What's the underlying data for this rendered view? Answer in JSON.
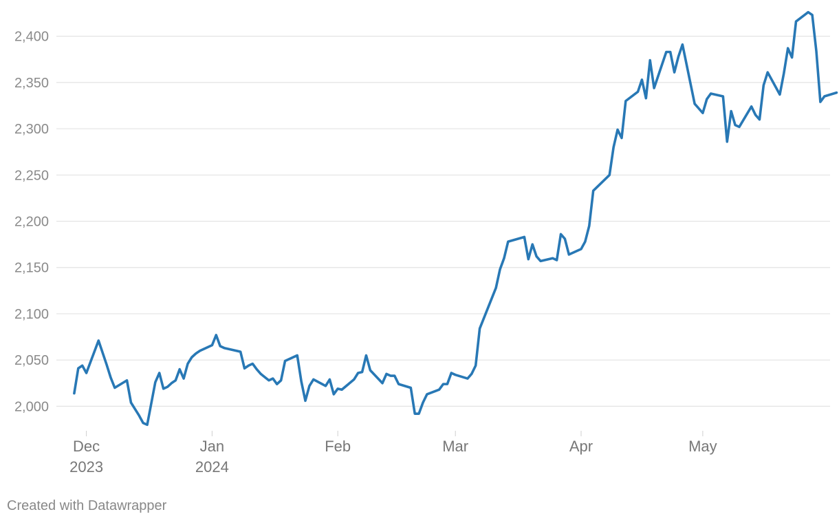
{
  "footer": {
    "credit": "Created with Datawrapper"
  },
  "colors": {
    "line": "#2878b5",
    "grid": "#e3e3e3",
    "tick_text": "#8a8a8a"
  },
  "chart_data": {
    "type": "line",
    "title": "",
    "xlabel": "",
    "ylabel": "",
    "ylim": [
      1975,
      2428
    ],
    "xlim": [
      "2023-11-27",
      "2024-05-29"
    ],
    "y_ticks": [
      {
        "value": 2000,
        "label": "2,000"
      },
      {
        "value": 2050,
        "label": "2,050"
      },
      {
        "value": 2100,
        "label": "2,100"
      },
      {
        "value": 2150,
        "label": "2,150"
      },
      {
        "value": 2200,
        "label": "2,200"
      },
      {
        "value": 2250,
        "label": "2,250"
      },
      {
        "value": 2300,
        "label": "2,300"
      },
      {
        "value": 2350,
        "label": "2,350"
      },
      {
        "value": 2400,
        "label": "2,400"
      }
    ],
    "x_ticks": [
      {
        "date": "2023-12-01",
        "label": "Dec",
        "sublabel": "2023"
      },
      {
        "date": "2024-01-01",
        "label": "Jan",
        "sublabel": "2024"
      },
      {
        "date": "2024-02-01",
        "label": "Feb",
        "sublabel": ""
      },
      {
        "date": "2024-03-01",
        "label": "Mar",
        "sublabel": ""
      },
      {
        "date": "2024-04-01",
        "label": "Apr",
        "sublabel": ""
      },
      {
        "date": "2024-05-01",
        "label": "May",
        "sublabel": ""
      }
    ],
    "grid": true,
    "legend": "none",
    "series": [
      {
        "points": [
          [
            "2023-11-28",
            2014
          ],
          [
            "2023-11-29",
            2041
          ],
          [
            "2023-11-30",
            2044
          ],
          [
            "2023-12-01",
            2036
          ],
          [
            "2023-12-04",
            2071
          ],
          [
            "2023-12-05",
            2058
          ],
          [
            "2023-12-06",
            2045
          ],
          [
            "2023-12-07",
            2031
          ],
          [
            "2023-12-08",
            2020
          ],
          [
            "2023-12-11",
            2028
          ],
          [
            "2023-12-12",
            2004
          ],
          [
            "2023-12-13",
            1997
          ],
          [
            "2023-12-14",
            1990
          ],
          [
            "2023-12-15",
            1982
          ],
          [
            "2023-12-16",
            1980
          ],
          [
            "2023-12-18",
            2026
          ],
          [
            "2023-12-19",
            2036
          ],
          [
            "2023-12-20",
            2019
          ],
          [
            "2023-12-21",
            2021
          ],
          [
            "2023-12-22",
            2025
          ],
          [
            "2023-12-23",
            2028
          ],
          [
            "2023-12-24",
            2040
          ],
          [
            "2023-12-25",
            2030
          ],
          [
            "2023-12-26",
            2046
          ],
          [
            "2023-12-27",
            2053
          ],
          [
            "2023-12-28",
            2057
          ],
          [
            "2023-12-29",
            2060
          ],
          [
            "2024-01-01",
            2066
          ],
          [
            "2024-01-02",
            2077
          ],
          [
            "2024-01-03",
            2065
          ],
          [
            "2024-01-04",
            2063
          ],
          [
            "2024-01-08",
            2059
          ],
          [
            "2024-01-09",
            2041
          ],
          [
            "2024-01-10",
            2044
          ],
          [
            "2024-01-11",
            2046
          ],
          [
            "2024-01-12",
            2040
          ],
          [
            "2024-01-13",
            2035
          ],
          [
            "2024-01-15",
            2028
          ],
          [
            "2024-01-16",
            2030
          ],
          [
            "2024-01-17",
            2024
          ],
          [
            "2024-01-18",
            2028
          ],
          [
            "2024-01-19",
            2049
          ],
          [
            "2024-01-22",
            2055
          ],
          [
            "2024-01-23",
            2027
          ],
          [
            "2024-01-24",
            2006
          ],
          [
            "2024-01-25",
            2022
          ],
          [
            "2024-01-26",
            2029
          ],
          [
            "2024-01-29",
            2022
          ],
          [
            "2024-01-30",
            2029
          ],
          [
            "2024-01-31",
            2013
          ],
          [
            "2024-02-01",
            2019
          ],
          [
            "2024-02-02",
            2018
          ],
          [
            "2024-02-05",
            2029
          ],
          [
            "2024-02-06",
            2036
          ],
          [
            "2024-02-07",
            2037
          ],
          [
            "2024-02-08",
            2055
          ],
          [
            "2024-02-09",
            2039
          ],
          [
            "2024-02-12",
            2025
          ],
          [
            "2024-02-13",
            2035
          ],
          [
            "2024-02-14",
            2033
          ],
          [
            "2024-02-15",
            2033
          ],
          [
            "2024-02-16",
            2024
          ],
          [
            "2024-02-19",
            2020
          ],
          [
            "2024-02-20",
            1992
          ],
          [
            "2024-02-21",
            1992
          ],
          [
            "2024-02-22",
            2004
          ],
          [
            "2024-02-23",
            2013
          ],
          [
            "2024-02-26",
            2018
          ],
          [
            "2024-02-27",
            2024
          ],
          [
            "2024-02-28",
            2024
          ],
          [
            "2024-02-29",
            2036
          ],
          [
            "2024-03-01",
            2034
          ],
          [
            "2024-03-04",
            2030
          ],
          [
            "2024-03-05",
            2035
          ],
          [
            "2024-03-06",
            2044
          ],
          [
            "2024-03-07",
            2084
          ],
          [
            "2024-03-11",
            2128
          ],
          [
            "2024-03-12",
            2148
          ],
          [
            "2024-03-13",
            2160
          ],
          [
            "2024-03-14",
            2178
          ],
          [
            "2024-03-18",
            2183
          ],
          [
            "2024-03-19",
            2159
          ],
          [
            "2024-03-20",
            2175
          ],
          [
            "2024-03-21",
            2162
          ],
          [
            "2024-03-22",
            2157
          ],
          [
            "2024-03-25",
            2160
          ],
          [
            "2024-03-26",
            2158
          ],
          [
            "2024-03-27",
            2186
          ],
          [
            "2024-03-28",
            2181
          ],
          [
            "2024-03-29",
            2164
          ],
          [
            "2024-04-01",
            2170
          ],
          [
            "2024-04-02",
            2178
          ],
          [
            "2024-04-03",
            2195
          ],
          [
            "2024-04-04",
            2233
          ],
          [
            "2024-04-08",
            2250
          ],
          [
            "2024-04-09",
            2280
          ],
          [
            "2024-04-10",
            2299
          ],
          [
            "2024-04-11",
            2290
          ],
          [
            "2024-04-12",
            2330
          ],
          [
            "2024-04-15",
            2340
          ],
          [
            "2024-04-16",
            2353
          ],
          [
            "2024-04-17",
            2333
          ],
          [
            "2024-04-18",
            2374
          ],
          [
            "2024-04-19",
            2344
          ],
          [
            "2024-04-22",
            2383
          ],
          [
            "2024-04-23",
            2383
          ],
          [
            "2024-04-24",
            2361
          ],
          [
            "2024-04-25",
            2378
          ],
          [
            "2024-04-26",
            2391
          ],
          [
            "2024-04-29",
            2327
          ],
          [
            "2024-04-30",
            2322
          ],
          [
            "2024-05-01",
            2317
          ],
          [
            "2024-05-02",
            2332
          ],
          [
            "2024-05-03",
            2338
          ],
          [
            "2024-05-06",
            2335
          ],
          [
            "2024-05-07",
            2286
          ],
          [
            "2024-05-08",
            2319
          ],
          [
            "2024-05-09",
            2304
          ],
          [
            "2024-05-10",
            2302
          ],
          [
            "2024-05-13",
            2324
          ],
          [
            "2024-05-14",
            2315
          ],
          [
            "2024-05-15",
            2310
          ],
          [
            "2024-05-16",
            2347
          ],
          [
            "2024-05-17",
            2361
          ],
          [
            "2024-05-20",
            2337
          ],
          [
            "2024-05-21",
            2360
          ],
          [
            "2024-05-22",
            2387
          ],
          [
            "2024-05-23",
            2377
          ],
          [
            "2024-05-24",
            2416
          ],
          [
            "2024-05-27",
            2426
          ],
          [
            "2024-05-28",
            2423
          ],
          [
            "2024-05-29",
            2384
          ],
          [
            "2024-05-30",
            2329
          ],
          [
            "2024-05-31",
            2335
          ],
          [
            "2024-06-03",
            2339
          ]
        ]
      }
    ]
  }
}
